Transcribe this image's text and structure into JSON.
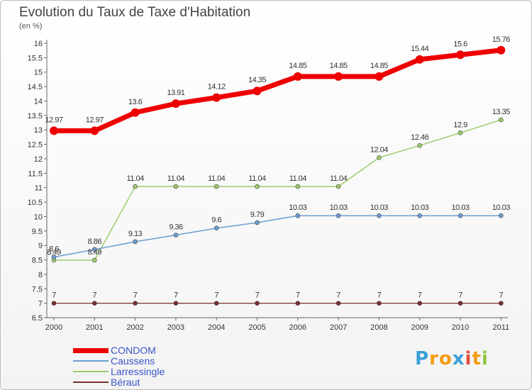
{
  "title": "Evolution du Taux de Taxe d'Habitation",
  "subtitle": "(en %)",
  "logo": {
    "text": "Proxiti",
    "letters": [
      {
        "ch": "P",
        "color": "#3aa0d8"
      },
      {
        "ch": "r",
        "color": "#f39c12"
      },
      {
        "ch": "o",
        "color": "#f39c12"
      },
      {
        "ch": "x",
        "color": "#3aa0d8"
      },
      {
        "ch": "i",
        "color": "#e74c3c"
      },
      {
        "ch": "t",
        "color": "#f39c12"
      },
      {
        "ch": "i",
        "color": "#8cc63f"
      }
    ]
  },
  "chart_data": {
    "type": "line",
    "x": [
      "2000",
      "2001",
      "2002",
      "2003",
      "2004",
      "2005",
      "2006",
      "2007",
      "2008",
      "2009",
      "2010",
      "2011"
    ],
    "ylim": [
      6.5,
      16
    ],
    "yticks": [
      "6.5",
      "7",
      "7.5",
      "8",
      "8.5",
      "9",
      "9.5",
      "10",
      "10.5",
      "11",
      "11.5",
      "12",
      "12.5",
      "13",
      "13.5",
      "14",
      "14.5",
      "15",
      "15.5",
      "16"
    ],
    "grid": false,
    "legend_position": "bottom-left",
    "series": [
      {
        "name": "CONDOM",
        "color": "#ee0000",
        "values": [
          12.97,
          12.97,
          13.6,
          13.91,
          14.12,
          14.35,
          14.85,
          14.85,
          14.85,
          15.44,
          15.6,
          15.76
        ],
        "labels": [
          "12.97",
          "12.97",
          "13.6",
          "13.91",
          "14.12",
          "14.35",
          "14.85",
          "14.85",
          "14.85",
          "15.44",
          "15.6",
          "15.76"
        ]
      },
      {
        "name": "Caussens",
        "color": "#6a9fd0",
        "values": [
          8.6,
          8.86,
          9.13,
          9.36,
          9.6,
          9.79,
          10.03,
          10.03,
          10.03,
          10.03,
          10.03,
          10.03
        ],
        "labels": [
          "8.6",
          "8.86",
          "9.13",
          "9.36",
          "9.6",
          "9.79",
          "10.03",
          "10.03",
          "10.03",
          "10.03",
          "10.03",
          "10.03"
        ]
      },
      {
        "name": "Larressingle",
        "color": "#9ccc6a",
        "values": [
          8.49,
          8.49,
          11.04,
          11.04,
          11.04,
          11.04,
          11.04,
          11.04,
          12.04,
          12.46,
          12.9,
          13.35
        ],
        "labels": [
          "8.49",
          "8.49",
          "11.04",
          "11.04",
          "11.04",
          "11.04",
          "11.04",
          "11.04",
          "12.04",
          "12.46",
          "12.9",
          "13.35"
        ]
      },
      {
        "name": "Béraut",
        "color": "#7a2e2e",
        "values": [
          7,
          7,
          7,
          7,
          7,
          7,
          7,
          7,
          7,
          7,
          7,
          7
        ],
        "labels": [
          "7",
          "7",
          "7",
          "7",
          "7",
          "7",
          "7",
          "7",
          "7",
          "7",
          "7",
          "7"
        ]
      }
    ]
  }
}
